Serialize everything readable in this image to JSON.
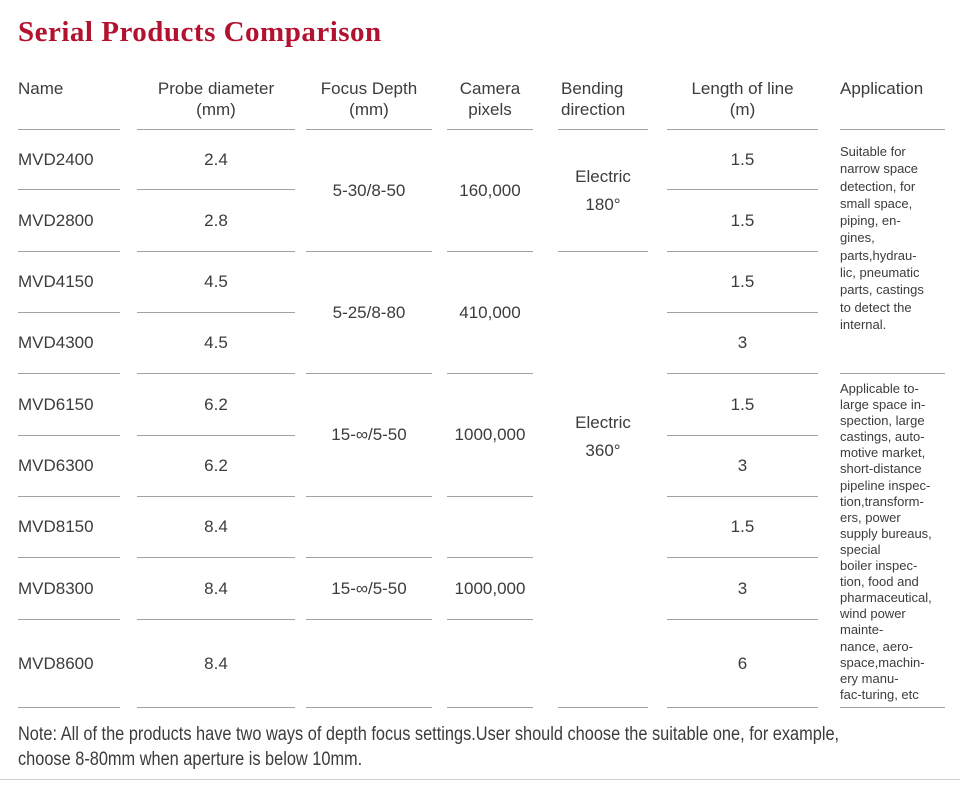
{
  "title": "Serial Products Comparison",
  "colors": {
    "title": "#b2122f",
    "text": "#3c3c3c",
    "line": "#a3a3a3"
  },
  "note": "Note: All of the products have two ways of depth focus settings.User should choose the suitable one, for example,\nchoose 8-80mm when aperture is below 10mm.",
  "table": {
    "columns": [
      {
        "key": "name",
        "header": [
          "Name"
        ]
      },
      {
        "key": "probe",
        "header": [
          "Probe diameter",
          "(mm)"
        ]
      },
      {
        "key": "focus",
        "header": [
          "Focus Depth",
          "(mm)"
        ]
      },
      {
        "key": "camera",
        "header": [
          "Camera",
          "pixels"
        ]
      },
      {
        "key": "bending",
        "header": [
          "Bending",
          "direction"
        ]
      },
      {
        "key": "length",
        "header": [
          "Length of line",
          "(m)"
        ]
      },
      {
        "key": "app",
        "header": [
          "Application"
        ]
      }
    ],
    "names": [
      "MVD2400",
      "MVD2800",
      "MVD4150",
      "MVD4300",
      "MVD6150",
      "MVD6300",
      "MVD8150",
      "MVD8300",
      "MVD8600"
    ],
    "probe_values": [
      "2.4",
      "2.8",
      "4.5",
      "4.5",
      "6.2",
      "6.2",
      "8.4",
      "8.4",
      "8.4"
    ],
    "focus_cells": [
      {
        "row": 1,
        "span": 2,
        "text": "5-30/8-50"
      },
      {
        "row": 3,
        "span": 2,
        "text": "5-25/8-80"
      },
      {
        "row": 5,
        "span": 2,
        "text": "15-∞/5-50"
      },
      {
        "row": 7,
        "span": 1,
        "text": ""
      },
      {
        "row": 8,
        "span": 1,
        "text": "15-∞/5-50"
      },
      {
        "row": 9,
        "span": 1,
        "text": ""
      }
    ],
    "camera_cells": [
      {
        "row": 1,
        "span": 2,
        "text": "160,000"
      },
      {
        "row": 3,
        "span": 2,
        "text": "410,000"
      },
      {
        "row": 5,
        "span": 2,
        "text": "1000,000"
      },
      {
        "row": 7,
        "span": 1,
        "text": ""
      },
      {
        "row": 8,
        "span": 1,
        "text": "1000,000"
      },
      {
        "row": 9,
        "span": 1,
        "text": ""
      }
    ],
    "bending_cells": [
      {
        "row": 1,
        "span": 2,
        "lines": [
          "Electric",
          "180°"
        ]
      },
      {
        "row": 3,
        "span": 7,
        "lines": [
          "Electric",
          "360°"
        ]
      }
    ],
    "length_values": [
      "1.5",
      "1.5",
      "1.5",
      "3",
      "1.5",
      "3",
      "1.5",
      "3",
      "6"
    ],
    "application_cells": [
      {
        "row": 1,
        "span": 4,
        "lines": [
          "Suitable for",
          "narrow space",
          "detection, for",
          "small space,",
          "piping, en-",
          "gines,",
          "parts,hydrau-",
          "lic, pneumatic",
          "parts, castings",
          "to detect the",
          "internal."
        ]
      },
      {
        "row": 5,
        "span": 5,
        "lines": [
          "Applicable to-",
          "large space in-",
          "spection, large",
          "castings, auto-",
          "motive market,",
          "short-distance",
          "pipeline inspec-",
          "tion,transform-",
          "ers, power",
          "supply bureaus,",
          "special",
          "boiler inspec-",
          "tion, food and",
          "pharmaceutical,",
          "wind power",
          "mainte-",
          "nance, aero-",
          "space,machin-",
          "ery manu-",
          "fac-turing, etc"
        ]
      }
    ]
  }
}
